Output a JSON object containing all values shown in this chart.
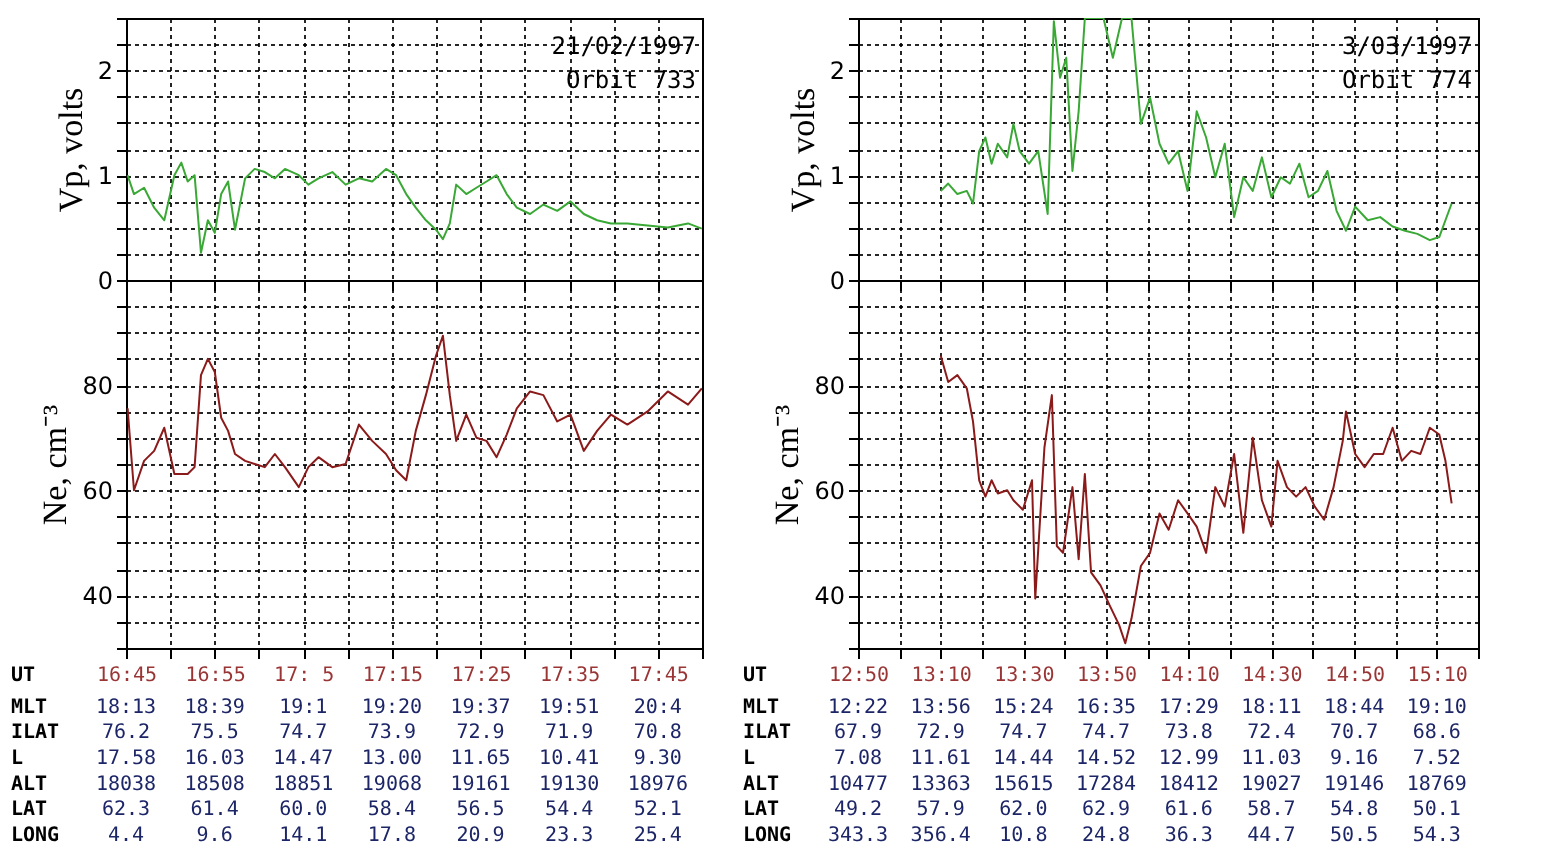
{
  "chart_data": [
    {
      "type": "line",
      "ylabel": "Vp,  volts",
      "annotations": [
        "21/02/1997",
        "Orbit  733"
      ],
      "grid": true,
      "tick_labels": "y",
      "xlim": [
        16.75,
        17.8333
      ],
      "ylim": [
        0,
        2.5
      ],
      "yticks": [
        0,
        {
          "value": 0.25,
          "label": null
        },
        {
          "value": 0.5,
          "label": null
        },
        {
          "value": 0.75,
          "label": null
        },
        1,
        {
          "value": 1.25,
          "label": null
        },
        {
          "value": 1.5,
          "label": null
        },
        {
          "value": 1.75,
          "label": null
        },
        2,
        {
          "value": 2.25,
          "label": null
        },
        {
          "value": 2.5,
          "label": null
        }
      ],
      "x": [
        16.753,
        16.765,
        16.784,
        16.803,
        16.822,
        16.841,
        16.854,
        16.866,
        16.879,
        16.891,
        16.904,
        16.917,
        16.929,
        16.942,
        16.955,
        16.974,
        16.992,
        17.011,
        17.03,
        17.049,
        17.075,
        17.093,
        17.112,
        17.138,
        17.163,
        17.188,
        17.213,
        17.239,
        17.258,
        17.277,
        17.295,
        17.314,
        17.333,
        17.346,
        17.359,
        17.371,
        17.39,
        17.409,
        17.428,
        17.447,
        17.466,
        17.485,
        17.51,
        17.535,
        17.561,
        17.586,
        17.611,
        17.636,
        17.662,
        17.693,
        17.731,
        17.769,
        17.807,
        17.833
      ],
      "series": [
        {
          "color": "#3aa835",
          "values": [
            1.0,
            0.82,
            0.88,
            0.69,
            0.57,
            1.0,
            1.12,
            0.94,
            1.0,
            0.26,
            0.57,
            0.45,
            0.82,
            0.94,
            0.48,
            0.97,
            1.06,
            1.03,
            0.97,
            1.06,
            1.0,
            0.91,
            0.97,
            1.03,
            0.91,
            0.97,
            0.94,
            1.06,
            1.0,
            0.82,
            0.69,
            0.57,
            0.48,
            0.39,
            0.54,
            0.91,
            0.82,
            0.88,
            0.94,
            1.0,
            0.82,
            0.69,
            0.63,
            0.72,
            0.66,
            0.75,
            0.63,
            0.57,
            0.54,
            0.54,
            0.52,
            0.5,
            0.54,
            0.49
          ]
        }
      ]
    },
    {
      "type": "line",
      "ylabel": "Ne,  cm⁻³",
      "xlabel": "UT",
      "grid": true,
      "xlim": [
        16.75,
        17.8333
      ],
      "ylim": [
        30,
        100
      ],
      "xticks": [
        {
          "value": 16.75,
          "label": "16:45"
        },
        {
          "value": 16.8333,
          "label": null
        },
        {
          "value": 16.9167,
          "label": "16:55"
        },
        {
          "value": 17,
          "label": null
        },
        {
          "value": 17.0833,
          "label": "17: 5"
        },
        {
          "value": 17.1667,
          "label": null
        },
        {
          "value": 17.25,
          "label": "17:15"
        },
        {
          "value": 17.3333,
          "label": null
        },
        {
          "value": 17.4167,
          "label": "17:25"
        },
        {
          "value": 17.5,
          "label": null
        },
        {
          "value": 17.5833,
          "label": "17:35"
        },
        {
          "value": 17.6667,
          "label": null
        },
        {
          "value": 17.75,
          "label": "17:45"
        },
        {
          "value": 17.8333,
          "label": null
        }
      ],
      "yticks": [
        {
          "value": 30,
          "label": null
        },
        {
          "value": 35,
          "label": null
        },
        40,
        {
          "value": 45,
          "label": null
        },
        {
          "value": 50,
          "label": null
        },
        {
          "value": 55,
          "label": null
        },
        60,
        {
          "value": 65,
          "label": null
        },
        {
          "value": 70,
          "label": null
        },
        {
          "value": 75,
          "label": null
        },
        80,
        {
          "value": 85,
          "label": null
        },
        {
          "value": 90,
          "label": null
        },
        {
          "value": 95,
          "label": null
        },
        {
          "value": 100,
          "label": null
        }
      ],
      "x": [
        16.753,
        16.765,
        16.784,
        16.803,
        16.822,
        16.841,
        16.854,
        16.866,
        16.879,
        16.891,
        16.904,
        16.917,
        16.929,
        16.942,
        16.955,
        16.974,
        16.992,
        17.011,
        17.03,
        17.049,
        17.075,
        17.093,
        17.112,
        17.138,
        17.163,
        17.188,
        17.213,
        17.239,
        17.258,
        17.277,
        17.295,
        17.314,
        17.333,
        17.346,
        17.359,
        17.371,
        17.39,
        17.409,
        17.428,
        17.447,
        17.466,
        17.485,
        17.51,
        17.535,
        17.561,
        17.586,
        17.611,
        17.636,
        17.662,
        17.693,
        17.731,
        17.769,
        17.807,
        17.833
      ],
      "series": [
        {
          "color": "#8b1a1a",
          "values": [
            75.6,
            60,
            65.6,
            67.5,
            71.9,
            63.1,
            63.1,
            63.1,
            64.4,
            81.9,
            85,
            82.5,
            73.8,
            71.3,
            66.9,
            65.6,
            65,
            64.4,
            66.9,
            64.4,
            60.6,
            64.4,
            66.3,
            64.4,
            65,
            72.5,
            69.4,
            66.9,
            63.8,
            61.9,
            71.3,
            78.1,
            85.6,
            89.4,
            78.1,
            69.4,
            74.4,
            70,
            69.4,
            66.3,
            70.6,
            75.6,
            78.8,
            78.1,
            73.1,
            74.4,
            67.5,
            71.3,
            74.4,
            72.5,
            75,
            78.8,
            76.3,
            79.4
          ]
        }
      ]
    },
    {
      "type": "heatmap",
      "categories": [
        null,
        null,
        null,
        null,
        null,
        null,
        null
      ],
      "y_categories": [
        "MLT",
        "ILAT",
        "L",
        "ALT",
        "LAT",
        "LONG"
      ],
      "cells": [
        [
          null,
          null,
          null,
          null,
          null,
          null,
          null
        ],
        [
          null,
          null,
          null,
          null,
          null,
          null,
          null
        ],
        [
          null,
          null,
          null,
          null,
          null,
          null,
          null
        ],
        [
          null,
          null,
          null,
          null,
          null,
          null,
          null
        ],
        [
          null,
          null,
          null,
          null,
          null,
          null,
          null
        ],
        [
          null,
          null,
          null,
          null,
          null,
          null,
          null
        ]
      ],
      "cell_labels": [
        [
          "18:13",
          "18:39",
          "19:1",
          "19:20",
          "19:37",
          "19:51",
          "20:4"
        ],
        [
          "76.2",
          "75.5",
          "74.7",
          "73.9",
          "72.9",
          "71.9",
          "70.8"
        ],
        [
          "17.58",
          "16.03",
          "14.47",
          "13.00",
          "11.65",
          "10.41",
          "9.30"
        ],
        [
          "18038",
          "18508",
          "18851",
          "19068",
          "19161",
          "19130",
          "18976"
        ],
        [
          "62.3",
          "61.4",
          "60.0",
          "58.4",
          "56.5",
          "54.4",
          "52.1"
        ],
        [
          "4.4",
          "9.6",
          "14.1",
          "17.8",
          "20.9",
          "23.3",
          "25.4"
        ]
      ]
    },
    {
      "type": "line",
      "ylabel": "Vp,  volts",
      "annotations": [
        "3/03/1997",
        "Orbit  774"
      ],
      "grid": true,
      "tick_labels": "y",
      "xlim": [
        12.8333,
        15.3333
      ],
      "ylim": [
        0,
        2.5
      ],
      "yticks": [
        0,
        {
          "value": 0.25,
          "label": null
        },
        {
          "value": 0.5,
          "label": null
        },
        {
          "value": 0.75,
          "label": null
        },
        1,
        {
          "value": 1.25,
          "label": null
        },
        {
          "value": 1.5,
          "label": null
        },
        {
          "value": 1.75,
          "label": null
        },
        2,
        {
          "value": 2.25,
          "label": null
        },
        {
          "value": 2.5,
          "label": null
        }
      ],
      "x": [
        13.167,
        13.197,
        13.234,
        13.272,
        13.297,
        13.322,
        13.347,
        13.372,
        13.397,
        13.435,
        13.46,
        13.485,
        13.523,
        13.56,
        13.598,
        13.623,
        13.648,
        13.673,
        13.698,
        13.723,
        13.748,
        13.786,
        13.823,
        13.861,
        13.898,
        13.936,
        13.974,
        14.011,
        14.049,
        14.086,
        14.124,
        14.162,
        14.199,
        14.237,
        14.274,
        14.312,
        14.35,
        14.387,
        14.425,
        14.462,
        14.5,
        14.538,
        14.575,
        14.613,
        14.65,
        14.688,
        14.726,
        14.763,
        14.801,
        14.838,
        14.889,
        14.939,
        14.989,
        15.039,
        15.089,
        15.139,
        15.177,
        15.202,
        15.227
      ],
      "series": [
        {
          "color": "#3aa835",
          "values": [
            0.85,
            0.92,
            0.82,
            0.85,
            0.73,
            1.23,
            1.36,
            1.11,
            1.3,
            1.17,
            1.49,
            1.23,
            1.11,
            1.23,
            0.63,
            2.47,
            1.93,
            2.12,
            1.04,
            1.61,
            2.5,
            2.5,
            2.5,
            2.12,
            2.5,
            2.5,
            1.49,
            1.74,
            1.3,
            1.11,
            1.23,
            0.85,
            1.61,
            1.36,
            0.98,
            1.3,
            0.6,
            0.98,
            0.85,
            1.17,
            0.79,
            0.98,
            0.92,
            1.11,
            0.79,
            0.85,
            1.04,
            0.66,
            0.47,
            0.7,
            0.57,
            0.6,
            0.51,
            0.47,
            0.44,
            0.38,
            0.41,
            0.57,
            0.73
          ]
        }
      ]
    },
    {
      "type": "line",
      "ylabel": "Ne,  cm⁻³",
      "xlabel": "UT",
      "grid": true,
      "xlim": [
        12.8333,
        15.3333
      ],
      "ylim": [
        30,
        100
      ],
      "xticks": [
        {
          "value": 12.8333,
          "label": "12:50"
        },
        {
          "value": 13,
          "label": null
        },
        {
          "value": 13.1667,
          "label": "13:10"
        },
        {
          "value": 13.3333,
          "label": null
        },
        {
          "value": 13.5,
          "label": "13:30"
        },
        {
          "value": 13.6667,
          "label": null
        },
        {
          "value": 13.8333,
          "label": "13:50"
        },
        {
          "value": 14,
          "label": null
        },
        {
          "value": 14.1667,
          "label": "14:10"
        },
        {
          "value": 14.3333,
          "label": null
        },
        {
          "value": 14.5,
          "label": "14:30"
        },
        {
          "value": 14.6667,
          "label": null
        },
        {
          "value": 14.8333,
          "label": "14:50"
        },
        {
          "value": 15,
          "label": null
        },
        {
          "value": 15.1667,
          "label": "15:10"
        },
        {
          "value": 15.3333,
          "label": null
        }
      ],
      "yticks": [
        {
          "value": 30,
          "label": null
        },
        {
          "value": 35,
          "label": null
        },
        40,
        {
          "value": 45,
          "label": null
        },
        {
          "value": 50,
          "label": null
        },
        {
          "value": 55,
          "label": null
        },
        60,
        {
          "value": 65,
          "label": null
        },
        {
          "value": 70,
          "label": null
        },
        {
          "value": 75,
          "label": null
        },
        80,
        {
          "value": 85,
          "label": null
        },
        {
          "value": 90,
          "label": null
        },
        {
          "value": 95,
          "label": null
        },
        {
          "value": 100,
          "label": null
        }
      ],
      "x": [
        13.167,
        13.197,
        13.234,
        13.272,
        13.297,
        13.322,
        13.347,
        13.372,
        13.397,
        13.435,
        13.46,
        13.498,
        13.535,
        13.548,
        13.585,
        13.615,
        13.635,
        13.66,
        13.698,
        13.723,
        13.748,
        13.773,
        13.811,
        13.848,
        13.886,
        13.911,
        13.936,
        13.974,
        14.011,
        14.049,
        14.086,
        14.124,
        14.162,
        14.199,
        14.237,
        14.274,
        14.312,
        14.35,
        14.387,
        14.425,
        14.462,
        14.5,
        14.525,
        14.563,
        14.6,
        14.638,
        14.675,
        14.713,
        14.751,
        14.788,
        14.801,
        14.838,
        14.876,
        14.913,
        14.951,
        14.989,
        15.026,
        15.064,
        15.101,
        15.139,
        15.177,
        15.202,
        15.227
      ],
      "series": [
        {
          "color": "#8b1a1a",
          "values": [
            85.6,
            80.6,
            81.9,
            79.4,
            73.1,
            61.9,
            58.8,
            61.9,
            59.4,
            60,
            58.1,
            56.3,
            61.9,
            39.4,
            68.1,
            78.1,
            49.4,
            48.1,
            60.6,
            46.9,
            63.1,
            44.4,
            41.9,
            38.1,
            34.4,
            30.9,
            35.6,
            45.6,
            48.1,
            55.6,
            52.5,
            58.1,
            55.6,
            53.1,
            48.1,
            60.6,
            56.9,
            66.9,
            51.9,
            70,
            58.1,
            53.1,
            65.6,
            60.6,
            58.8,
            60.6,
            56.9,
            54.4,
            60.6,
            69.4,
            75,
            66.9,
            64.4,
            66.9,
            66.9,
            71.9,
            65.6,
            67.5,
            66.9,
            71.9,
            70.6,
            65.6,
            57.5
          ]
        }
      ]
    },
    {
      "type": "heatmap",
      "categories": [
        null,
        null,
        null,
        null,
        null,
        null,
        null,
        null
      ],
      "y_categories": [
        "MLT",
        "ILAT",
        "L",
        "ALT",
        "LAT",
        "LONG"
      ],
      "cells": [
        [
          null,
          null,
          null,
          null,
          null,
          null,
          null,
          null
        ],
        [
          null,
          null,
          null,
          null,
          null,
          null,
          null,
          null
        ],
        [
          null,
          null,
          null,
          null,
          null,
          null,
          null,
          null
        ],
        [
          null,
          null,
          null,
          null,
          null,
          null,
          null,
          null
        ],
        [
          null,
          null,
          null,
          null,
          null,
          null,
          null,
          null
        ],
        [
          null,
          null,
          null,
          null,
          null,
          null,
          null,
          null
        ]
      ],
      "cell_labels": [
        [
          "12:22",
          "13:56",
          "15:24",
          "16:35",
          "17:29",
          "18:11",
          "18:44",
          "19:10"
        ],
        [
          "67.9",
          "72.9",
          "74.7",
          "74.7",
          "73.8",
          "72.4",
          "70.7",
          "68.6"
        ],
        [
          "7.08",
          "11.61",
          "14.44",
          "14.52",
          "12.99",
          "11.03",
          "9.16",
          "7.52"
        ],
        [
          "10477",
          "13363",
          "15615",
          "17284",
          "18412",
          "19027",
          "19146",
          "18769"
        ],
        [
          "49.2",
          "57.9",
          "62.0",
          "62.9",
          "61.6",
          "58.7",
          "54.8",
          "50.1"
        ],
        [
          "343.3",
          "356.4",
          "10.8",
          "24.8",
          "36.3",
          "44.7",
          "50.5",
          "54.3"
        ]
      ]
    }
  ]
}
